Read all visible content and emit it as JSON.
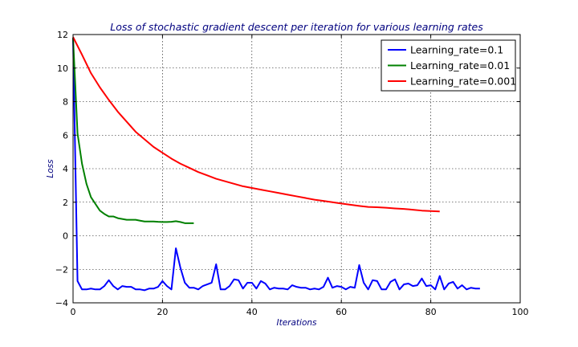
{
  "chart_data": {
    "type": "line",
    "title": "Loss of stochastic gradient descent per iteration for various learning rates",
    "xlabel": "Iterations",
    "ylabel": "Loss",
    "xlim": [
      0,
      100
    ],
    "ylim": [
      -4,
      12
    ],
    "xticks": [
      0,
      20,
      40,
      60,
      80,
      100
    ],
    "yticks": [
      -4,
      -2,
      0,
      2,
      4,
      6,
      8,
      10,
      12
    ],
    "grid": true,
    "legend_position": "top-right",
    "series": [
      {
        "name": "Learning_rate=0.1",
        "color": "#0000ff",
        "x": [
          0,
          1,
          2,
          3,
          4,
          5,
          6,
          7,
          8,
          9,
          10,
          11,
          12,
          13,
          14,
          15,
          16,
          17,
          18,
          19,
          20,
          21,
          22,
          23,
          24,
          25,
          26,
          27,
          28,
          29,
          30,
          31,
          32,
          33,
          34,
          35,
          36,
          37,
          38,
          39,
          40,
          41,
          42,
          43,
          44,
          45,
          46,
          47,
          48,
          49,
          50,
          51,
          52,
          53,
          54,
          55,
          56,
          57,
          58,
          59,
          60,
          61,
          62,
          63,
          64,
          65,
          66,
          67,
          68,
          69,
          70,
          71,
          72,
          73,
          74,
          75,
          76,
          77,
          78,
          79,
          80,
          81,
          82,
          83,
          84,
          85,
          86,
          87,
          88,
          89,
          90,
          91
        ],
        "values": [
          11.8,
          -2.7,
          -3.2,
          -3.2,
          -3.15,
          -3.2,
          -3.2,
          -3.0,
          -2.65,
          -3.0,
          -3.2,
          -3.0,
          -3.05,
          -3.05,
          -3.2,
          -3.2,
          -3.25,
          -3.15,
          -3.15,
          -3.05,
          -2.7,
          -3.0,
          -3.2,
          -0.75,
          -1.9,
          -2.8,
          -3.1,
          -3.1,
          -3.2,
          -3.0,
          -2.9,
          -2.8,
          -1.7,
          -3.2,
          -3.2,
          -3.0,
          -2.6,
          -2.65,
          -3.15,
          -2.8,
          -2.8,
          -3.15,
          -2.7,
          -2.85,
          -3.2,
          -3.1,
          -3.15,
          -3.15,
          -3.2,
          -2.95,
          -3.05,
          -3.1,
          -3.1,
          -3.2,
          -3.15,
          -3.2,
          -3.05,
          -2.5,
          -3.1,
          -3.0,
          -3.05,
          -3.2,
          -3.05,
          -3.1,
          -1.75,
          -2.8,
          -3.2,
          -2.65,
          -2.7,
          -3.2,
          -3.2,
          -2.75,
          -2.6,
          -3.2,
          -2.9,
          -2.85,
          -3.0,
          -2.95,
          -2.55,
          -3.0,
          -2.95,
          -3.2,
          -2.4,
          -3.2,
          -2.85,
          -2.75,
          -3.15,
          -2.95,
          -3.2,
          -3.1,
          -3.15,
          -3.15
        ]
      },
      {
        "name": "Learning_rate=0.01",
        "color": "#008000",
        "x": [
          0,
          1,
          2,
          3,
          4,
          5,
          6,
          7,
          8,
          9,
          10,
          11,
          12,
          13,
          14,
          15,
          16,
          17,
          18,
          19,
          20,
          21,
          22,
          23,
          24,
          25,
          26,
          27
        ],
        "values": [
          11.8,
          6.1,
          4.3,
          3.1,
          2.3,
          1.9,
          1.5,
          1.3,
          1.15,
          1.15,
          1.05,
          1.0,
          0.95,
          0.95,
          0.95,
          0.9,
          0.85,
          0.85,
          0.85,
          0.83,
          0.82,
          0.82,
          0.83,
          0.87,
          0.82,
          0.75,
          0.75,
          0.75
        ]
      },
      {
        "name": "Learning_rate=0.001",
        "color": "#ff0000",
        "x": [
          0,
          2,
          4,
          6,
          8,
          10,
          12,
          14,
          16,
          18,
          20,
          22,
          24,
          26,
          28,
          30,
          32,
          34,
          36,
          38,
          40,
          42,
          44,
          46,
          48,
          50,
          52,
          54,
          56,
          58,
          60,
          62,
          64,
          66,
          68,
          70,
          72,
          74,
          76,
          78,
          80,
          82
        ],
        "values": [
          11.85,
          10.8,
          9.7,
          8.85,
          8.1,
          7.4,
          6.8,
          6.2,
          5.75,
          5.3,
          4.95,
          4.6,
          4.3,
          4.05,
          3.8,
          3.6,
          3.4,
          3.25,
          3.1,
          2.95,
          2.85,
          2.75,
          2.65,
          2.55,
          2.45,
          2.35,
          2.25,
          2.15,
          2.08,
          2.0,
          1.92,
          1.85,
          1.78,
          1.72,
          1.7,
          1.67,
          1.63,
          1.6,
          1.55,
          1.5,
          1.47,
          1.45
        ]
      }
    ]
  }
}
